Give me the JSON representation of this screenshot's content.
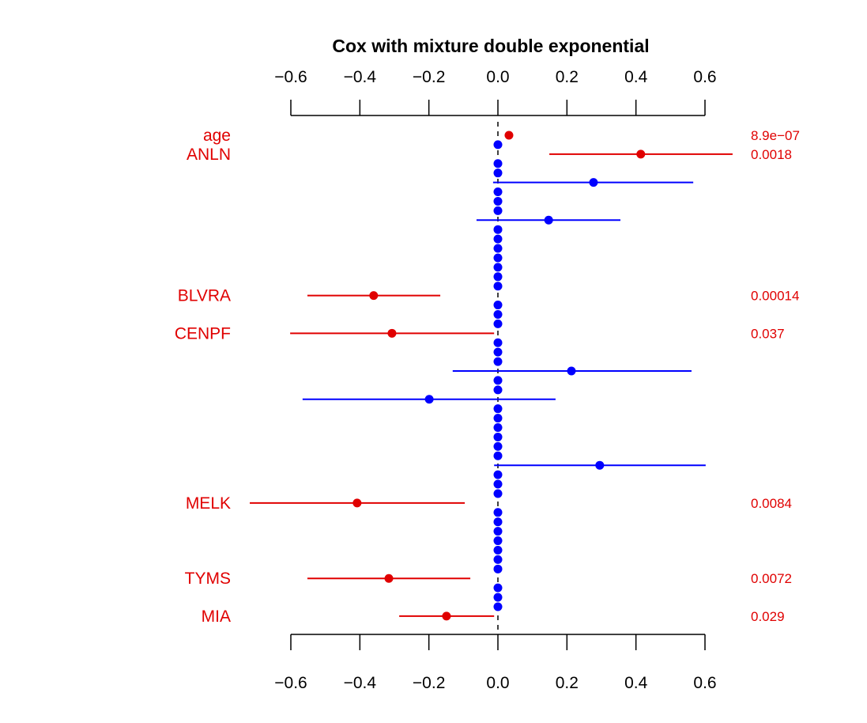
{
  "chart_data": {
    "type": "forest",
    "title": "Cox with mixture double exponential",
    "xlabel": "",
    "ylabel": "",
    "xlim": [
      -0.6,
      0.6
    ],
    "xticks": [
      -0.6,
      -0.4,
      -0.2,
      0.0,
      0.2,
      0.4,
      0.6
    ],
    "xtick_labels": [
      "−0.6",
      "−0.4",
      "−0.2",
      "0.0",
      "0.2",
      "0.4",
      "0.6"
    ],
    "reference_line": 0,
    "colors": {
      "significant": "#e00000",
      "other": "#0000ff",
      "axis": "#000000"
    },
    "rows": [
      {
        "label": "age",
        "est": 0.032,
        "lo": 0.03,
        "hi": 0.034,
        "pvalue": "8.9e−07",
        "significant": true
      },
      {
        "label": "",
        "est": 0,
        "lo": 0,
        "hi": 0,
        "pvalue": "",
        "significant": false
      },
      {
        "label": "ANLN",
        "est": 0.414,
        "lo": 0.149,
        "hi": 0.68,
        "pvalue": "0.0018",
        "significant": true
      },
      {
        "label": "",
        "est": 0,
        "lo": 0,
        "hi": 0,
        "pvalue": "",
        "significant": false
      },
      {
        "label": "",
        "est": 0,
        "lo": 0,
        "hi": 0,
        "pvalue": "",
        "significant": false
      },
      {
        "label": "",
        "est": 0.277,
        "lo": -0.014,
        "hi": 0.566,
        "pvalue": "",
        "significant": false
      },
      {
        "label": "",
        "est": 0,
        "lo": 0,
        "hi": 0,
        "pvalue": "",
        "significant": false
      },
      {
        "label": "",
        "est": 0,
        "lo": 0,
        "hi": 0,
        "pvalue": "",
        "significant": false
      },
      {
        "label": "",
        "est": 0,
        "lo": 0,
        "hi": 0,
        "pvalue": "",
        "significant": false
      },
      {
        "label": "",
        "est": 0.147,
        "lo": -0.062,
        "hi": 0.355,
        "pvalue": "",
        "significant": false
      },
      {
        "label": "",
        "est": 0,
        "lo": 0,
        "hi": 0,
        "pvalue": "",
        "significant": false
      },
      {
        "label": "",
        "est": 0,
        "lo": 0,
        "hi": 0,
        "pvalue": "",
        "significant": false
      },
      {
        "label": "",
        "est": 0,
        "lo": 0,
        "hi": 0,
        "pvalue": "",
        "significant": false
      },
      {
        "label": "",
        "est": 0,
        "lo": 0,
        "hi": 0,
        "pvalue": "",
        "significant": false
      },
      {
        "label": "",
        "est": 0,
        "lo": 0,
        "hi": 0,
        "pvalue": "",
        "significant": false
      },
      {
        "label": "",
        "est": 0,
        "lo": 0,
        "hi": 0,
        "pvalue": "",
        "significant": false
      },
      {
        "label": "",
        "est": 0,
        "lo": 0,
        "hi": 0,
        "pvalue": "",
        "significant": false
      },
      {
        "label": "BLVRA",
        "est": -0.36,
        "lo": -0.552,
        "hi": -0.167,
        "pvalue": "0.00014",
        "significant": true
      },
      {
        "label": "",
        "est": 0,
        "lo": 0,
        "hi": 0,
        "pvalue": "",
        "significant": false
      },
      {
        "label": "",
        "est": 0,
        "lo": 0,
        "hi": 0,
        "pvalue": "",
        "significant": false
      },
      {
        "label": "",
        "est": 0,
        "lo": 0,
        "hi": 0,
        "pvalue": "",
        "significant": false
      },
      {
        "label": "CENPF",
        "est": -0.307,
        "lo": -0.602,
        "hi": -0.011,
        "pvalue": "0.037",
        "significant": true
      },
      {
        "label": "",
        "est": 0,
        "lo": 0,
        "hi": 0,
        "pvalue": "",
        "significant": false
      },
      {
        "label": "",
        "est": 0,
        "lo": 0,
        "hi": 0,
        "pvalue": "",
        "significant": false
      },
      {
        "label": "",
        "est": 0,
        "lo": 0,
        "hi": 0,
        "pvalue": "",
        "significant": false
      },
      {
        "label": "",
        "est": 0.213,
        "lo": -0.131,
        "hi": 0.561,
        "pvalue": "",
        "significant": false
      },
      {
        "label": "",
        "est": 0,
        "lo": 0,
        "hi": 0,
        "pvalue": "",
        "significant": false
      },
      {
        "label": "",
        "est": 0,
        "lo": 0,
        "hi": 0,
        "pvalue": "",
        "significant": false
      },
      {
        "label": "",
        "est": -0.199,
        "lo": -0.566,
        "hi": 0.167,
        "pvalue": "",
        "significant": false
      },
      {
        "label": "",
        "est": 0,
        "lo": 0,
        "hi": 0,
        "pvalue": "",
        "significant": false
      },
      {
        "label": "",
        "est": 0,
        "lo": 0,
        "hi": 0,
        "pvalue": "",
        "significant": false
      },
      {
        "label": "",
        "est": 0,
        "lo": 0,
        "hi": 0,
        "pvalue": "",
        "significant": false
      },
      {
        "label": "",
        "est": 0,
        "lo": 0,
        "hi": 0,
        "pvalue": "",
        "significant": false
      },
      {
        "label": "",
        "est": 0,
        "lo": 0,
        "hi": 0,
        "pvalue": "",
        "significant": false
      },
      {
        "label": "",
        "est": 0,
        "lo": 0,
        "hi": 0,
        "pvalue": "",
        "significant": false
      },
      {
        "label": "",
        "est": 0.295,
        "lo": -0.011,
        "hi": 0.602,
        "pvalue": "",
        "significant": false
      },
      {
        "label": "",
        "est": 0,
        "lo": 0,
        "hi": 0,
        "pvalue": "",
        "significant": false
      },
      {
        "label": "",
        "est": 0,
        "lo": 0,
        "hi": 0,
        "pvalue": "",
        "significant": false
      },
      {
        "label": "",
        "est": 0,
        "lo": 0,
        "hi": 0,
        "pvalue": "",
        "significant": false
      },
      {
        "label": "MELK",
        "est": -0.408,
        "lo": -0.719,
        "hi": -0.096,
        "pvalue": "0.0084",
        "significant": true
      },
      {
        "label": "",
        "est": 0,
        "lo": 0,
        "hi": 0,
        "pvalue": "",
        "significant": false
      },
      {
        "label": "",
        "est": 0,
        "lo": 0,
        "hi": 0,
        "pvalue": "",
        "significant": false
      },
      {
        "label": "",
        "est": 0,
        "lo": 0,
        "hi": 0,
        "pvalue": "",
        "significant": false
      },
      {
        "label": "",
        "est": 0,
        "lo": 0,
        "hi": 0,
        "pvalue": "",
        "significant": false
      },
      {
        "label": "",
        "est": 0,
        "lo": 0,
        "hi": 0,
        "pvalue": "",
        "significant": false
      },
      {
        "label": "",
        "est": 0,
        "lo": 0,
        "hi": 0,
        "pvalue": "",
        "significant": false
      },
      {
        "label": "",
        "est": 0,
        "lo": 0,
        "hi": 0,
        "pvalue": "",
        "significant": false
      },
      {
        "label": "TYMS",
        "est": -0.316,
        "lo": -0.552,
        "hi": -0.08,
        "pvalue": "0.0072",
        "significant": true
      },
      {
        "label": "",
        "est": 0,
        "lo": 0,
        "hi": 0,
        "pvalue": "",
        "significant": false
      },
      {
        "label": "",
        "est": 0,
        "lo": 0,
        "hi": 0,
        "pvalue": "",
        "significant": false
      },
      {
        "label": "",
        "est": 0,
        "lo": 0,
        "hi": 0,
        "pvalue": "",
        "significant": false
      },
      {
        "label": "MIA",
        "est": -0.149,
        "lo": -0.286,
        "hi": -0.011,
        "pvalue": "0.029",
        "significant": true
      }
    ]
  }
}
